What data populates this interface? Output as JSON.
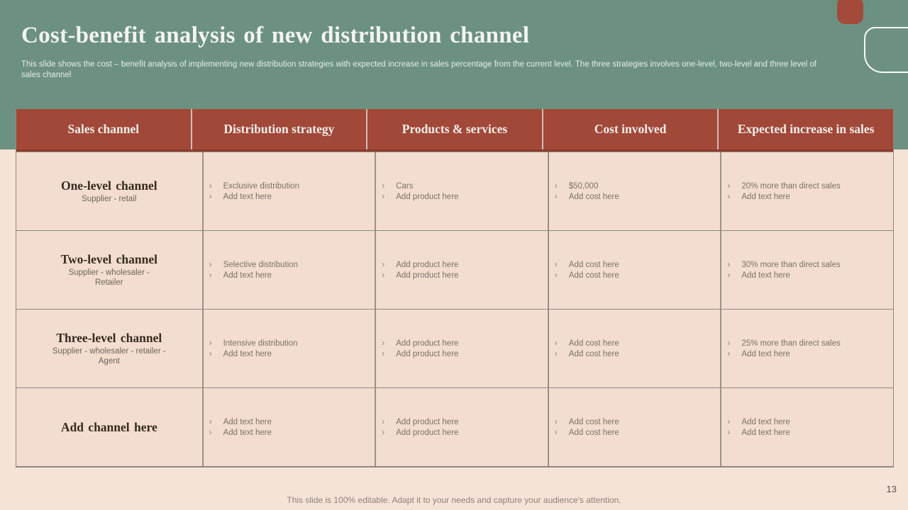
{
  "slide": {
    "title": "Cost-benefit analysis of new distribution channel",
    "subtitle": "This slide shows the cost – benefit analysis of implementing new distribution strategies with expected increase in sales percentage from the current level. The three strategies involves one-level, two-level and three level of\nsales channel",
    "footer": "This slide is 100% editable. Adapt it to your needs and capture your audience's attention.",
    "page_number": "13"
  },
  "ui": {
    "bullet_char": "›"
  },
  "colors": {
    "green_background": "#6c9181",
    "accent_red": "#a34a3a",
    "header_red": "#a14839",
    "cell_peach": "#f2ddd0",
    "lower_background": "#f5e3d8"
  },
  "table": {
    "headers": [
      "Sales channel",
      "Distribution strategy",
      "Products & services",
      "Cost involved",
      "Expected increase in sales"
    ],
    "rows": [
      {
        "channel": "One-level channel",
        "channel_sub": "Supplier - retail",
        "strategy": [
          "Exclusive distribution",
          "Add text here"
        ],
        "products": [
          "Cars",
          "Add product here"
        ],
        "cost": [
          "$50,000",
          "Add cost here"
        ],
        "increase": [
          "20% more than direct sales",
          "Add text here"
        ]
      },
      {
        "channel": "Two-level channel",
        "channel_sub": "Supplier - wholesaler -\nRetailer",
        "strategy": [
          "Selective distribution",
          "Add text here"
        ],
        "products": [
          "Add product here",
          "Add product here"
        ],
        "cost": [
          "Add cost here",
          "Add cost here"
        ],
        "increase": [
          "30% more than direct sales",
          "Add text here"
        ]
      },
      {
        "channel": "Three-level channel",
        "channel_sub": "Supplier - wholesaler - retailer -\nAgent",
        "strategy": [
          "Intensive distribution",
          "Add text here"
        ],
        "products": [
          "Add product here",
          "Add product here"
        ],
        "cost": [
          "Add cost here",
          "Add cost here"
        ],
        "increase": [
          "25% more than direct sales",
          "Add text here"
        ]
      },
      {
        "channel": "Add channel here",
        "strategy": [
          "Add text here",
          "Add text here"
        ],
        "products": [
          "Add product here",
          "Add product here"
        ],
        "cost": [
          "Add cost here",
          "Add cost here"
        ],
        "increase": [
          "Add text here",
          "Add text here"
        ]
      }
    ]
  }
}
